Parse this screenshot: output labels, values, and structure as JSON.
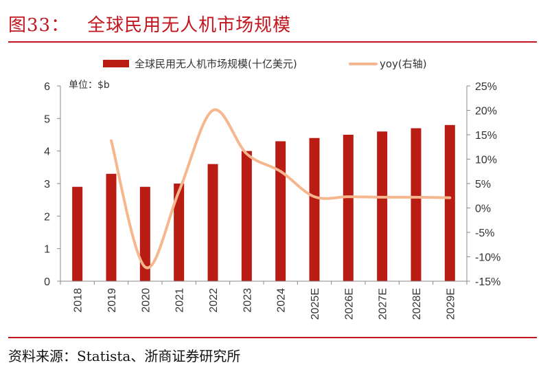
{
  "figure": {
    "number": "图33：",
    "title": "全球民用无人机市场规模",
    "source": "资料来源：Statista、浙商证券研究所"
  },
  "colors": {
    "brand_red": "#c0161e",
    "bar": "#b81c13",
    "line": "#f6b68e",
    "axis": "#888888",
    "text": "#333333"
  },
  "chart_data": {
    "type": "bar+line",
    "unit_label": "单位：$b",
    "categories": [
      "2018",
      "2019",
      "2020",
      "2021",
      "2022",
      "2023",
      "2024",
      "2025E",
      "2026E",
      "2027E",
      "2028E",
      "2029E"
    ],
    "series": [
      {
        "name": "全球民用无人机市场规模(十亿美元)",
        "type": "bar",
        "axis": "left",
        "values": [
          2.9,
          3.3,
          2.9,
          3.0,
          3.6,
          4.0,
          4.3,
          4.4,
          4.5,
          4.6,
          4.7,
          4.8
        ]
      },
      {
        "name": "yoy(右轴)",
        "type": "line",
        "axis": "right",
        "smooth": true,
        "values": [
          null,
          13.8,
          -12.1,
          3.4,
          20.0,
          11.1,
          7.5,
          2.3,
          2.3,
          2.2,
          2.2,
          2.1
        ]
      }
    ],
    "y_left": {
      "min": 0,
      "max": 6,
      "ticks": [
        0,
        1,
        2,
        3,
        4,
        5,
        6
      ],
      "tick_labels": [
        "0",
        "1",
        "2",
        "3",
        "4",
        "5",
        "6"
      ]
    },
    "y_right": {
      "min": -15,
      "max": 25,
      "ticks": [
        -15,
        -10,
        -5,
        0,
        5,
        10,
        15,
        20,
        25
      ],
      "tick_labels": [
        "-15%",
        "-10%",
        "-5%",
        "0%",
        "5%",
        "10%",
        "15%",
        "20%",
        "25%"
      ]
    },
    "legend_position": "top-center",
    "grid": false
  }
}
